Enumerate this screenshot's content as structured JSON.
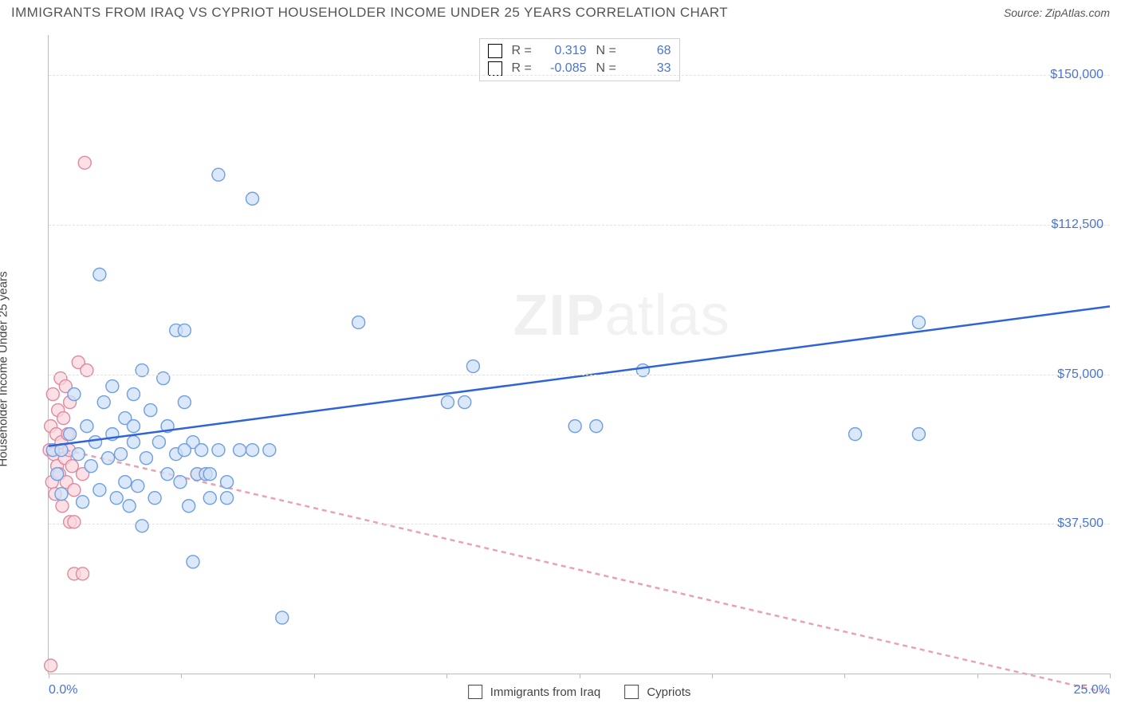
{
  "header": {
    "title": "IMMIGRANTS FROM IRAQ VS CYPRIOT HOUSEHOLDER INCOME UNDER 25 YEARS CORRELATION CHART",
    "source": "Source: ZipAtlas.com"
  },
  "chart": {
    "type": "scatter",
    "y_axis_label": "Householder Income Under 25 years",
    "watermark": "ZIPatlas",
    "x_axis": {
      "min_label": "0.0%",
      "max_label": "25.0%",
      "xlim": [
        0,
        25
      ],
      "tick_positions_pct": [
        0,
        12.5,
        25,
        37.5,
        50,
        62.5,
        75,
        87.5,
        100
      ]
    },
    "y_axis": {
      "ylim": [
        0,
        160000
      ],
      "ticks": [
        {
          "value": 37500,
          "label": "$37,500"
        },
        {
          "value": 75000,
          "label": "$75,000"
        },
        {
          "value": 112500,
          "label": "$112,500"
        },
        {
          "value": 150000,
          "label": "$150,000"
        }
      ]
    },
    "legend": {
      "series1": {
        "label": "Immigrants from Iraq",
        "fill": "#cfe0f7",
        "stroke": "#6f9fe0"
      },
      "series2": {
        "label": "Cypriots",
        "fill": "#f9d6de",
        "stroke": "#de8aa0"
      }
    },
    "stats": [
      {
        "swatch_fill": "#cfe0f7",
        "swatch_stroke": "#6f9fe0",
        "r_label": "R =",
        "r_value": "0.319",
        "n_label": "N =",
        "n_value": "68"
      },
      {
        "swatch_fill": "#f9d6de",
        "swatch_stroke": "#de8aa0",
        "r_label": "R =",
        "r_value": "-0.085",
        "n_label": "N =",
        "n_value": "33"
      }
    ],
    "style": {
      "background_color": "#ffffff",
      "grid_color": "#e2e2e2",
      "axis_color": "#bbbbbb",
      "label_color": "#4a74d4",
      "marker_radius": 8,
      "marker_opacity": 0.75,
      "trend_line_width": 2.5
    },
    "series_iraq": {
      "fill": "#cfe0f7",
      "stroke": "#6f9fe0",
      "trend": {
        "color": "#2f63d6",
        "dash": "none",
        "y_at_x0": 57000,
        "y_at_xmax": 92000
      },
      "points": [
        {
          "x": 0.1,
          "y": 56000
        },
        {
          "x": 0.2,
          "y": 50000
        },
        {
          "x": 0.3,
          "y": 45000
        },
        {
          "x": 0.5,
          "y": 60000
        },
        {
          "x": 0.6,
          "y": 70000
        },
        {
          "x": 0.7,
          "y": 55000
        },
        {
          "x": 0.8,
          "y": 43000
        },
        {
          "x": 0.9,
          "y": 62000
        },
        {
          "x": 1.0,
          "y": 52000
        },
        {
          "x": 1.1,
          "y": 58000
        },
        {
          "x": 1.2,
          "y": 46000
        },
        {
          "x": 1.3,
          "y": 68000
        },
        {
          "x": 1.4,
          "y": 54000
        },
        {
          "x": 1.5,
          "y": 60000
        },
        {
          "x": 1.8,
          "y": 48000
        },
        {
          "x": 1.5,
          "y": 72000
        },
        {
          "x": 1.6,
          "y": 44000
        },
        {
          "x": 1.7,
          "y": 55000
        },
        {
          "x": 1.8,
          "y": 64000
        },
        {
          "x": 1.9,
          "y": 42000
        },
        {
          "x": 2.0,
          "y": 58000
        },
        {
          "x": 2.0,
          "y": 70000
        },
        {
          "x": 2.0,
          "y": 62000
        },
        {
          "x": 2.2,
          "y": 76000
        },
        {
          "x": 2.1,
          "y": 47000
        },
        {
          "x": 2.3,
          "y": 54000
        },
        {
          "x": 2.2,
          "y": 37000
        },
        {
          "x": 2.4,
          "y": 66000
        },
        {
          "x": 2.5,
          "y": 44000
        },
        {
          "x": 2.6,
          "y": 58000
        },
        {
          "x": 2.7,
          "y": 74000
        },
        {
          "x": 2.8,
          "y": 50000
        },
        {
          "x": 3.0,
          "y": 86000
        },
        {
          "x": 2.8,
          "y": 62000
        },
        {
          "x": 3.0,
          "y": 55000
        },
        {
          "x": 3.1,
          "y": 48000
        },
        {
          "x": 3.2,
          "y": 68000
        },
        {
          "x": 3.3,
          "y": 42000
        },
        {
          "x": 3.4,
          "y": 58000
        },
        {
          "x": 3.2,
          "y": 86000
        },
        {
          "x": 3.5,
          "y": 50000
        },
        {
          "x": 3.8,
          "y": 44000
        },
        {
          "x": 3.6,
          "y": 56000
        },
        {
          "x": 3.7,
          "y": 50000
        },
        {
          "x": 3.8,
          "y": 50000
        },
        {
          "x": 3.4,
          "y": 28000
        },
        {
          "x": 4.0,
          "y": 56000
        },
        {
          "x": 4.2,
          "y": 48000
        },
        {
          "x": 4.0,
          "y": 125000
        },
        {
          "x": 4.2,
          "y": 44000
        },
        {
          "x": 4.5,
          "y": 56000
        },
        {
          "x": 4.8,
          "y": 119000
        },
        {
          "x": 3.2,
          "y": 56000
        },
        {
          "x": 5.2,
          "y": 56000
        },
        {
          "x": 5.5,
          "y": 14000
        },
        {
          "x": 4.8,
          "y": 56000
        },
        {
          "x": 1.2,
          "y": 100000
        },
        {
          "x": 7.3,
          "y": 88000
        },
        {
          "x": 9.4,
          "y": 68000
        },
        {
          "x": 9.8,
          "y": 68000
        },
        {
          "x": 10.0,
          "y": 77000
        },
        {
          "x": 12.4,
          "y": 62000
        },
        {
          "x": 12.9,
          "y": 62000
        },
        {
          "x": 14.0,
          "y": 76000
        },
        {
          "x": 20.5,
          "y": 88000
        },
        {
          "x": 19.0,
          "y": 60000
        },
        {
          "x": 20.5,
          "y": 60000
        },
        {
          "x": 0.3,
          "y": 56000
        }
      ]
    },
    "series_cyp": {
      "fill": "#f9d6de",
      "stroke": "#de8aa0",
      "trend": {
        "color": "#e8a2b4",
        "dash": "6,5",
        "y_at_x0": 57000,
        "y_at_xmax": -5000
      },
      "points": [
        {
          "x": 0.02,
          "y": 56000
        },
        {
          "x": 0.05,
          "y": 62000
        },
        {
          "x": 0.08,
          "y": 48000
        },
        {
          "x": 0.1,
          "y": 70000
        },
        {
          "x": 0.12,
          "y": 55000
        },
        {
          "x": 0.15,
          "y": 45000
        },
        {
          "x": 0.18,
          "y": 60000
        },
        {
          "x": 0.2,
          "y": 52000
        },
        {
          "x": 0.22,
          "y": 66000
        },
        {
          "x": 0.25,
          "y": 50000
        },
        {
          "x": 0.28,
          "y": 74000
        },
        {
          "x": 0.3,
          "y": 58000
        },
        {
          "x": 0.32,
          "y": 42000
        },
        {
          "x": 0.35,
          "y": 64000
        },
        {
          "x": 0.38,
          "y": 54000
        },
        {
          "x": 0.4,
          "y": 72000
        },
        {
          "x": 0.42,
          "y": 48000
        },
        {
          "x": 0.45,
          "y": 60000
        },
        {
          "x": 0.48,
          "y": 56000
        },
        {
          "x": 0.5,
          "y": 68000
        },
        {
          "x": 0.55,
          "y": 52000
        },
        {
          "x": 0.6,
          "y": 46000
        },
        {
          "x": 0.7,
          "y": 78000
        },
        {
          "x": 0.8,
          "y": 50000
        },
        {
          "x": 0.9,
          "y": 76000
        },
        {
          "x": 0.5,
          "y": 38000
        },
        {
          "x": 0.6,
          "y": 38000
        },
        {
          "x": 0.6,
          "y": 25000
        },
        {
          "x": 0.8,
          "y": 25000
        },
        {
          "x": 0.85,
          "y": 128000
        },
        {
          "x": 3.5,
          "y": 50000
        },
        {
          "x": 3.7,
          "y": 50000
        },
        {
          "x": 0.05,
          "y": 2000
        }
      ]
    }
  }
}
